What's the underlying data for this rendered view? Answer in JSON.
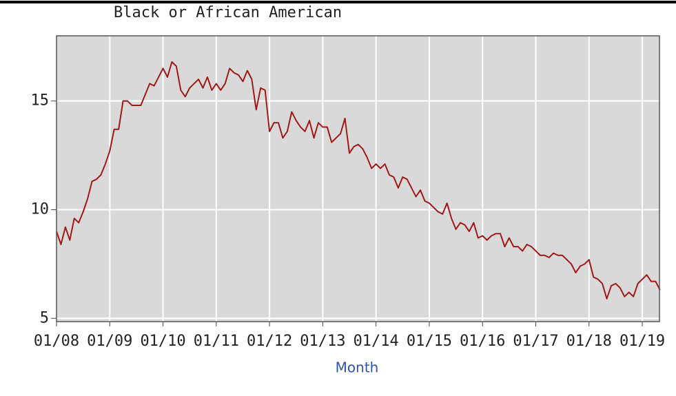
{
  "chart_data": {
    "type": "line",
    "title": "Black or African American",
    "x_label": "Month",
    "categories": [
      "01/08",
      null,
      null,
      null,
      null,
      null,
      null,
      null,
      null,
      null,
      null,
      null,
      "01/09",
      null,
      null,
      null,
      null,
      null,
      null,
      null,
      null,
      null,
      null,
      null,
      "01/10",
      null,
      null,
      null,
      null,
      null,
      null,
      null,
      null,
      null,
      null,
      null,
      "01/11",
      null,
      null,
      null,
      null,
      null,
      null,
      null,
      null,
      null,
      null,
      null,
      "01/12",
      null,
      null,
      null,
      null,
      null,
      null,
      null,
      null,
      null,
      null,
      null,
      "01/13",
      null,
      null,
      null,
      null,
      null,
      null,
      null,
      null,
      null,
      null,
      null,
      "01/14",
      null,
      null,
      null,
      null,
      null,
      null,
      null,
      null,
      null,
      null,
      null,
      "01/15",
      null,
      null,
      null,
      null,
      null,
      null,
      null,
      null,
      null,
      null,
      null,
      "01/16",
      null,
      null,
      null,
      null,
      null,
      null,
      null,
      null,
      null,
      null,
      null,
      "01/17",
      null,
      null,
      null,
      null,
      null,
      null,
      null,
      null,
      null,
      null,
      null,
      "01/18",
      null,
      null,
      null,
      null,
      null,
      null,
      null,
      null,
      null,
      null,
      null,
      "01/19",
      null,
      null,
      null,
      null
    ],
    "series": [
      {
        "color": "#a01818",
        "values": [
          9.0,
          8.4,
          9.2,
          8.6,
          9.6,
          9.4,
          9.9,
          10.5,
          11.3,
          11.4,
          11.6,
          12.1,
          12.7,
          13.7,
          13.7,
          15.0,
          15.0,
          14.8,
          14.8,
          14.8,
          15.3,
          15.8,
          15.7,
          16.1,
          16.5,
          16.1,
          16.8,
          16.6,
          15.5,
          15.2,
          15.6,
          15.8,
          16.0,
          15.6,
          16.1,
          15.5,
          15.8,
          15.5,
          15.8,
          16.5,
          16.3,
          16.2,
          15.9,
          16.4,
          16.0,
          14.6,
          15.6,
          15.5,
          13.6,
          14.0,
          14.0,
          13.3,
          13.6,
          14.5,
          14.1,
          13.8,
          13.6,
          14.1,
          13.3,
          14.0,
          13.8,
          13.8,
          13.1,
          13.3,
          13.5,
          14.2,
          12.6,
          12.9,
          13.0,
          12.8,
          12.4,
          11.9,
          12.1,
          11.9,
          12.1,
          11.6,
          11.5,
          11.0,
          11.5,
          11.4,
          11.0,
          10.6,
          10.9,
          10.4,
          10.3,
          10.1,
          9.9,
          9.8,
          10.3,
          9.6,
          9.1,
          9.4,
          9.3,
          9.0,
          9.4,
          8.7,
          8.8,
          8.6,
          8.8,
          8.9,
          8.9,
          8.3,
          8.7,
          8.3,
          8.3,
          8.1,
          8.4,
          8.3,
          8.1,
          7.9,
          7.9,
          7.8,
          8.0,
          7.9,
          7.9,
          7.7,
          7.5,
          7.1,
          7.4,
          7.5,
          7.7,
          6.9,
          6.8,
          6.6,
          5.9,
          6.5,
          6.6,
          6.4,
          6.0,
          6.2,
          6.0,
          6.6,
          6.8,
          7.0,
          6.7,
          6.7,
          6.3
        ]
      }
    ],
    "ylim": [
      4.85,
      18
    ],
    "yticks": [
      5,
      10,
      15
    ],
    "grid": true
  }
}
